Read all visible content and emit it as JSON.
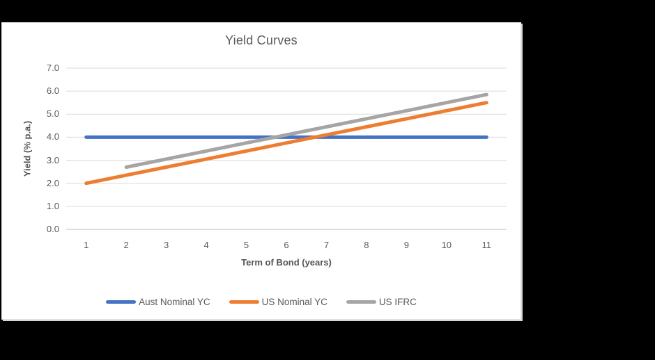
{
  "page": {
    "background": "#000000"
  },
  "chart": {
    "title": "Yield Curves",
    "background": "#FFFFFF",
    "border_color": "#E3E3E3",
    "title_color": "#595959"
  },
  "chart_data": {
    "type": "line",
    "title": "Yield Curves",
    "xlabel": "Term of Bond (years)",
    "ylabel": "Yield (% p.a.)",
    "x": [
      1,
      2,
      3,
      4,
      5,
      6,
      7,
      8,
      9,
      10,
      11
    ],
    "x_tick_labels": [
      "1",
      "2",
      "3",
      "4",
      "5",
      "6",
      "7",
      "8",
      "9",
      "10",
      "11"
    ],
    "ylim": [
      0,
      7
    ],
    "y_ticks": [
      0,
      1,
      2,
      3,
      4,
      5,
      6,
      7
    ],
    "y_tick_labels": [
      "0.0",
      "1.0",
      "2.0",
      "3.0",
      "4.0",
      "5.0",
      "6.0",
      "7.0"
    ],
    "grid": true,
    "legend_position": "bottom",
    "series": [
      {
        "name": "Aust Nominal YC",
        "color": "#4472C4",
        "values": [
          4.0,
          4.0,
          4.0,
          4.0,
          4.0,
          4.0,
          4.0,
          4.0,
          4.0,
          4.0,
          4.0
        ]
      },
      {
        "name": "US Nominal YC",
        "color": "#ED7D31",
        "values": [
          2.0,
          2.35,
          2.7,
          3.05,
          3.4,
          3.75,
          4.1,
          4.45,
          4.8,
          5.15,
          5.5
        ]
      },
      {
        "name": "US IFRC",
        "color": "#A5A5A5",
        "values": [
          null,
          2.7,
          3.05,
          3.4,
          3.75,
          4.1,
          4.45,
          4.8,
          5.15,
          5.5,
          5.85
        ]
      }
    ],
    "styles": {
      "grid_color": "#D9D9D9",
      "axis_line_color": "#BFBFBF",
      "text_color": "#595959",
      "line_width": 5
    }
  }
}
